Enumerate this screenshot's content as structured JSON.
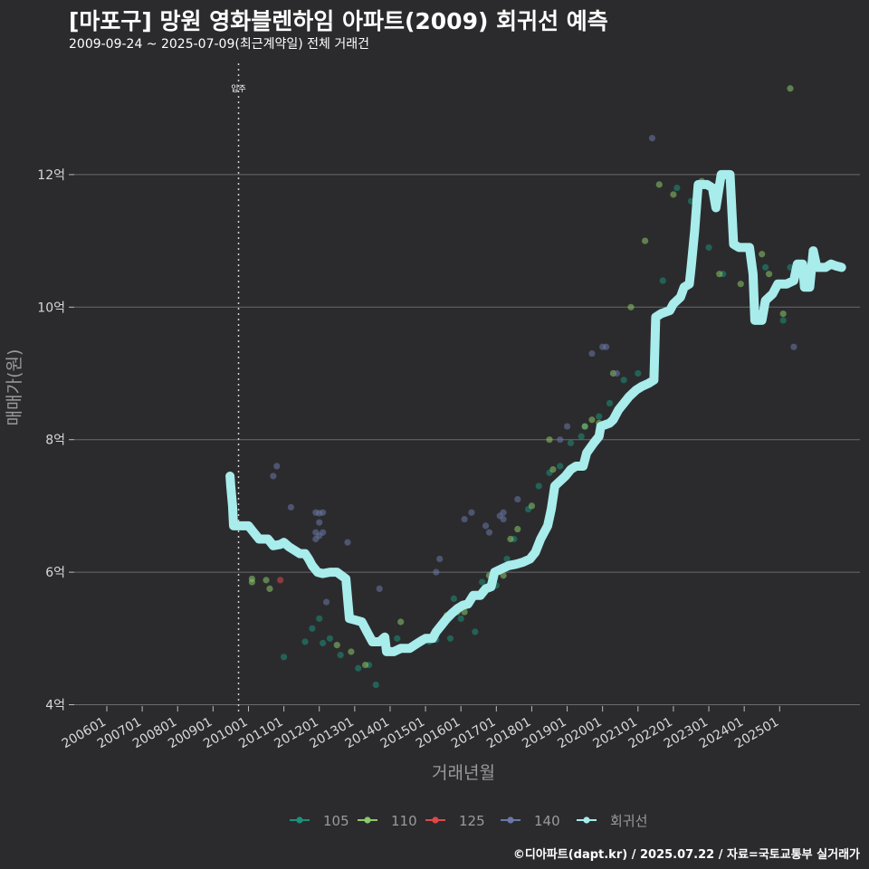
{
  "header": {
    "title": "[마포구] 망원 영화블렌하임 아파트(2009) 회귀선 예측",
    "subtitle": "2009-09-24 ~ 2025-07-09(최근계약일) 전체 거래건"
  },
  "footer": {
    "credit": "©디아파트(dapt.kr) / 2025.07.22 / 자료=국토교통부 실거래가"
  },
  "colors": {
    "background": "#2b2b2d",
    "grid": "#6b6b6b",
    "regression": "#a8ecec",
    "s105": "#1e8f7a",
    "s110": "#8cc96a",
    "s125": "#e0484a",
    "s140": "#6a78a8"
  },
  "chart_data": {
    "type": "scatter",
    "title": "[마포구] 망원 영화블렌하임 아파트(2009) 회귀선 예측",
    "xlabel": "거래년월",
    "ylabel": "매매가(원)",
    "x_ticks": [
      "200601",
      "200701",
      "200801",
      "200901",
      "201001",
      "201101",
      "201201",
      "201301",
      "201401",
      "201501",
      "201601",
      "201701",
      "201801",
      "201901",
      "202001",
      "202101",
      "202201",
      "202301",
      "202401",
      "202501"
    ],
    "y_ticks": [
      {
        "value": 4,
        "label": "4억"
      },
      {
        "value": 6,
        "label": "6억"
      },
      {
        "value": 8,
        "label": "8억"
      },
      {
        "value": 10,
        "label": "10억"
      },
      {
        "value": 12,
        "label": "12억"
      }
    ],
    "xlim": [
      2005.5,
      2027.25
    ],
    "ylim": [
      3.7,
      13.95
    ],
    "annotation": {
      "label": "입주",
      "x": 2009.72
    },
    "legend": [
      {
        "name": "105",
        "color_key": "s105"
      },
      {
        "name": "110",
        "color_key": "s110"
      },
      {
        "name": "125",
        "color_key": "s125"
      },
      {
        "name": "140",
        "color_key": "s140"
      },
      {
        "name": "회귀선",
        "color_key": "regression"
      }
    ],
    "series": [
      {
        "name": "105",
        "points": [
          [
            2011.0,
            4.72
          ],
          [
            2011.6,
            4.95
          ],
          [
            2011.8,
            5.15
          ],
          [
            2012.0,
            5.3
          ],
          [
            2012.1,
            4.93
          ],
          [
            2012.3,
            5.0
          ],
          [
            2012.6,
            4.75
          ],
          [
            2013.1,
            4.55
          ],
          [
            2013.4,
            4.6
          ],
          [
            2013.6,
            4.3
          ],
          [
            2014.2,
            5.0
          ],
          [
            2014.6,
            4.85
          ],
          [
            2015.1,
            4.95
          ],
          [
            2015.3,
            4.98
          ],
          [
            2015.5,
            5.2
          ],
          [
            2015.7,
            5.0
          ],
          [
            2015.8,
            5.6
          ],
          [
            2016.0,
            5.3
          ],
          [
            2016.2,
            5.5
          ],
          [
            2016.4,
            5.1
          ],
          [
            2016.5,
            5.65
          ],
          [
            2016.6,
            5.85
          ],
          [
            2016.9,
            5.9
          ],
          [
            2017.0,
            5.8
          ],
          [
            2017.3,
            6.2
          ],
          [
            2017.5,
            6.5
          ],
          [
            2017.9,
            6.95
          ],
          [
            2018.2,
            7.3
          ],
          [
            2018.5,
            7.5
          ],
          [
            2018.8,
            7.6
          ],
          [
            2019.1,
            7.95
          ],
          [
            2019.4,
            8.05
          ],
          [
            2019.5,
            8.2
          ],
          [
            2019.9,
            8.35
          ],
          [
            2020.2,
            8.55
          ],
          [
            2020.6,
            8.9
          ],
          [
            2021.0,
            9.0
          ],
          [
            2021.7,
            10.4
          ],
          [
            2022.1,
            11.8
          ],
          [
            2022.5,
            11.6
          ],
          [
            2023.0,
            10.9
          ],
          [
            2023.4,
            10.5
          ],
          [
            2024.1,
            10.9
          ],
          [
            2024.6,
            10.6
          ],
          [
            2025.1,
            9.8
          ],
          [
            2025.3,
            10.6
          ]
        ]
      },
      {
        "name": "110",
        "points": [
          [
            2010.1,
            5.85
          ],
          [
            2010.1,
            5.9
          ],
          [
            2010.5,
            5.88
          ],
          [
            2010.6,
            5.75
          ],
          [
            2012.5,
            4.9
          ],
          [
            2012.9,
            4.8
          ],
          [
            2013.3,
            4.6
          ],
          [
            2013.5,
            5.0
          ],
          [
            2014.3,
            5.25
          ],
          [
            2014.5,
            4.85
          ],
          [
            2015.0,
            5.0
          ],
          [
            2015.1,
            5.0
          ],
          [
            2015.4,
            5.15
          ],
          [
            2015.6,
            5.35
          ],
          [
            2015.9,
            5.4
          ],
          [
            2016.1,
            5.4
          ],
          [
            2016.8,
            5.95
          ],
          [
            2016.9,
            5.9
          ],
          [
            2017.2,
            5.95
          ],
          [
            2017.4,
            6.5
          ],
          [
            2017.6,
            6.65
          ],
          [
            2018.0,
            7.0
          ],
          [
            2018.5,
            8.0
          ],
          [
            2018.6,
            7.55
          ],
          [
            2019.5,
            8.2
          ],
          [
            2019.7,
            8.3
          ],
          [
            2019.9,
            8.25
          ],
          [
            2020.3,
            9.0
          ],
          [
            2020.8,
            10.0
          ],
          [
            2021.2,
            11.0
          ],
          [
            2021.6,
            11.85
          ],
          [
            2022.0,
            11.7
          ],
          [
            2022.8,
            11.9
          ],
          [
            2023.3,
            10.5
          ],
          [
            2023.9,
            10.35
          ],
          [
            2024.5,
            10.8
          ],
          [
            2024.7,
            10.5
          ],
          [
            2025.1,
            9.9
          ],
          [
            2025.3,
            13.3
          ]
        ]
      },
      {
        "name": "125",
        "points": [
          [
            2010.9,
            5.88
          ]
        ]
      },
      {
        "name": "140",
        "points": [
          [
            2010.7,
            7.45
          ],
          [
            2010.8,
            7.6
          ],
          [
            2011.2,
            6.98
          ],
          [
            2011.9,
            6.9
          ],
          [
            2011.9,
            6.6
          ],
          [
            2012.0,
            6.89
          ],
          [
            2012.0,
            6.75
          ],
          [
            2012.1,
            6.9
          ],
          [
            2012.1,
            6.6
          ],
          [
            2011.9,
            6.5
          ],
          [
            2012.0,
            6.55
          ],
          [
            2012.2,
            5.55
          ],
          [
            2012.8,
            6.45
          ],
          [
            2013.7,
            5.75
          ],
          [
            2015.3,
            6.0
          ],
          [
            2015.4,
            6.2
          ],
          [
            2016.1,
            6.8
          ],
          [
            2016.3,
            6.9
          ],
          [
            2016.7,
            6.7
          ],
          [
            2016.8,
            6.6
          ],
          [
            2017.1,
            6.85
          ],
          [
            2017.2,
            6.9
          ],
          [
            2017.2,
            6.8
          ],
          [
            2017.6,
            7.1
          ],
          [
            2018.8,
            8.0
          ],
          [
            2019.0,
            8.2
          ],
          [
            2019.7,
            9.3
          ],
          [
            2020.0,
            9.4
          ],
          [
            2020.1,
            9.4
          ],
          [
            2020.4,
            9.0
          ],
          [
            2021.4,
            12.55
          ],
          [
            2025.4,
            9.4
          ]
        ]
      }
    ],
    "regression": [
      [
        2009.48,
        7.45
      ],
      [
        2009.5,
        7.3
      ],
      [
        2009.55,
        7.0
      ],
      [
        2009.58,
        6.7
      ],
      [
        2009.8,
        6.7
      ],
      [
        2010.0,
        6.7
      ],
      [
        2010.15,
        6.6
      ],
      [
        2010.3,
        6.5
      ],
      [
        2010.55,
        6.5
      ],
      [
        2010.7,
        6.4
      ],
      [
        2010.9,
        6.42
      ],
      [
        2011.0,
        6.45
      ],
      [
        2011.15,
        6.38
      ],
      [
        2011.3,
        6.33
      ],
      [
        2011.45,
        6.28
      ],
      [
        2011.6,
        6.28
      ],
      [
        2011.7,
        6.2
      ],
      [
        2011.8,
        6.1
      ],
      [
        2011.95,
        6.0
      ],
      [
        2012.1,
        5.98
      ],
      [
        2012.3,
        6.0
      ],
      [
        2012.5,
        6.0
      ],
      [
        2012.75,
        5.9
      ],
      [
        2012.85,
        5.3
      ],
      [
        2013.0,
        5.28
      ],
      [
        2013.2,
        5.25
      ],
      [
        2013.35,
        5.1
      ],
      [
        2013.5,
        4.95
      ],
      [
        2013.7,
        4.95
      ],
      [
        2013.85,
        5.02
      ],
      [
        2013.9,
        4.8
      ],
      [
        2014.1,
        4.8
      ],
      [
        2014.3,
        4.85
      ],
      [
        2014.55,
        4.85
      ],
      [
        2014.75,
        4.92
      ],
      [
        2014.9,
        4.97
      ],
      [
        2015.0,
        5.0
      ],
      [
        2015.2,
        5.0
      ],
      [
        2015.3,
        5.1
      ],
      [
        2015.45,
        5.2
      ],
      [
        2015.6,
        5.3
      ],
      [
        2015.75,
        5.38
      ],
      [
        2015.9,
        5.45
      ],
      [
        2016.05,
        5.5
      ],
      [
        2016.2,
        5.52
      ],
      [
        2016.35,
        5.65
      ],
      [
        2016.55,
        5.65
      ],
      [
        2016.7,
        5.75
      ],
      [
        2016.85,
        5.78
      ],
      [
        2016.95,
        6.0
      ],
      [
        2017.15,
        6.05
      ],
      [
        2017.35,
        6.1
      ],
      [
        2017.55,
        6.12
      ],
      [
        2017.75,
        6.15
      ],
      [
        2017.95,
        6.2
      ],
      [
        2018.1,
        6.3
      ],
      [
        2018.25,
        6.5
      ],
      [
        2018.45,
        6.7
      ],
      [
        2018.55,
        6.95
      ],
      [
        2018.65,
        7.3
      ],
      [
        2018.85,
        7.4
      ],
      [
        2018.95,
        7.45
      ],
      [
        2019.1,
        7.55
      ],
      [
        2019.25,
        7.6
      ],
      [
        2019.45,
        7.6
      ],
      [
        2019.55,
        7.8
      ],
      [
        2019.75,
        7.95
      ],
      [
        2019.9,
        8.05
      ],
      [
        2019.95,
        8.2
      ],
      [
        2020.2,
        8.25
      ],
      [
        2020.3,
        8.3
      ],
      [
        2020.45,
        8.45
      ],
      [
        2020.6,
        8.55
      ],
      [
        2020.75,
        8.65
      ],
      [
        2020.95,
        8.75
      ],
      [
        2021.1,
        8.8
      ],
      [
        2021.3,
        8.85
      ],
      [
        2021.45,
        8.9
      ],
      [
        2021.5,
        9.85
      ],
      [
        2021.65,
        9.9
      ],
      [
        2021.9,
        9.95
      ],
      [
        2022.0,
        10.05
      ],
      [
        2022.2,
        10.15
      ],
      [
        2022.3,
        10.3
      ],
      [
        2022.45,
        10.35
      ],
      [
        2022.5,
        10.6
      ],
      [
        2022.6,
        11.15
      ],
      [
        2022.7,
        11.85
      ],
      [
        2022.95,
        11.85
      ],
      [
        2023.1,
        11.8
      ],
      [
        2023.2,
        11.5
      ],
      [
        2023.35,
        12.0
      ],
      [
        2023.6,
        12.0
      ],
      [
        2023.7,
        10.95
      ],
      [
        2023.85,
        10.9
      ],
      [
        2024.15,
        10.9
      ],
      [
        2024.25,
        10.5
      ],
      [
        2024.3,
        9.8
      ],
      [
        2024.5,
        9.8
      ],
      [
        2024.6,
        10.1
      ],
      [
        2024.8,
        10.2
      ],
      [
        2024.95,
        10.35
      ],
      [
        2025.2,
        10.35
      ],
      [
        2025.4,
        10.4
      ],
      [
        2025.5,
        10.65
      ],
      [
        2025.65,
        10.65
      ],
      [
        2025.7,
        10.3
      ],
      [
        2025.85,
        10.3
      ],
      [
        2025.95,
        10.85
      ],
      [
        2026.05,
        10.6
      ],
      [
        2026.3,
        10.6
      ],
      [
        2026.45,
        10.65
      ],
      [
        2026.6,
        10.62
      ],
      [
        2026.75,
        10.6
      ]
    ]
  }
}
